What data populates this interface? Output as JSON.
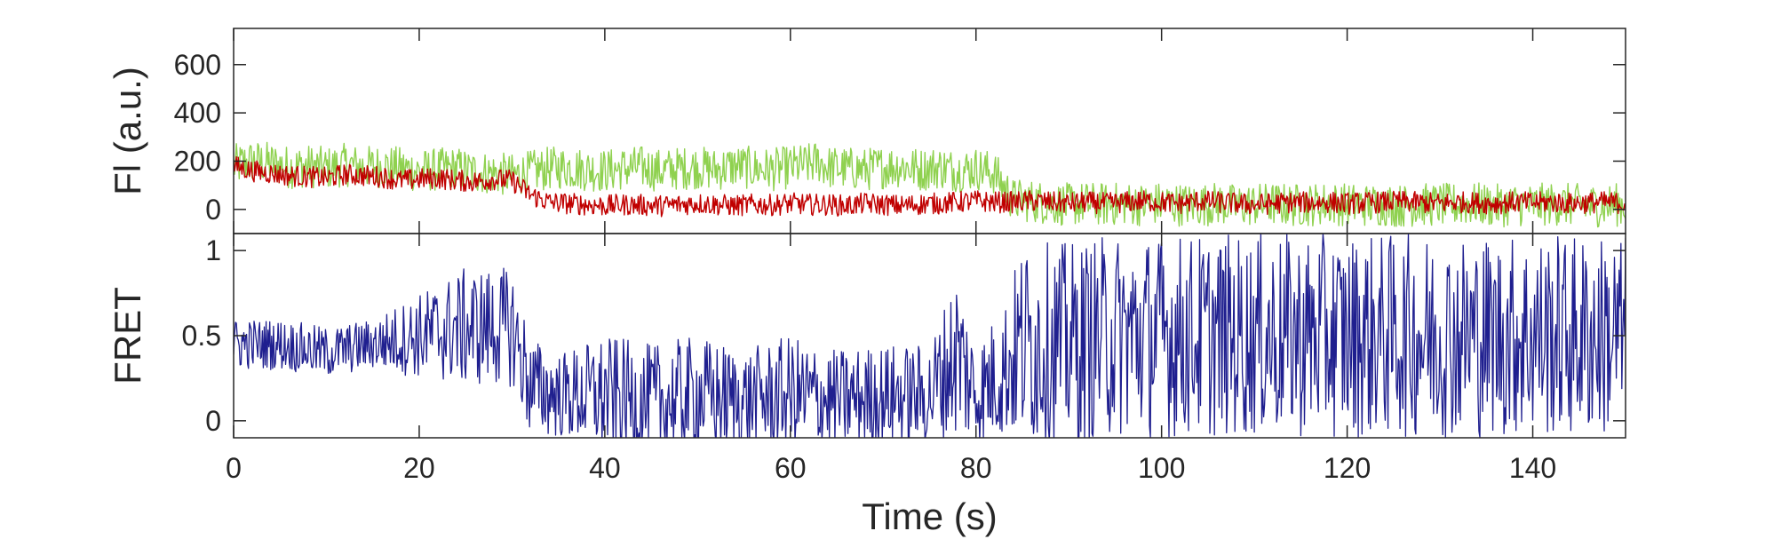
{
  "chart_data": [
    {
      "type": "line",
      "panel": "top",
      "ylabel": "Fl (a.u.)",
      "xlim": [
        0,
        150
      ],
      "ylim": [
        -100,
        750
      ],
      "yticks": [
        0,
        200,
        400,
        600
      ],
      "y_tick_labels": [
        "0",
        "200",
        "400",
        "600"
      ],
      "grid": false,
      "series": [
        {
          "color": "#8fd14f",
          "x": [
            0,
            2,
            4,
            6,
            8,
            10,
            12,
            14,
            16,
            18,
            20,
            22,
            24,
            26,
            28,
            30,
            32,
            34,
            36,
            38,
            40,
            42,
            44,
            46,
            48,
            50,
            52,
            54,
            56,
            58,
            60,
            62,
            63,
            64,
            66,
            68,
            70,
            72,
            74,
            76,
            78,
            80,
            82,
            84,
            86,
            88,
            90,
            92,
            94,
            96,
            98,
            100,
            102,
            104,
            106,
            108,
            110,
            112,
            114,
            116,
            118,
            120,
            122,
            124,
            126,
            128,
            130,
            132,
            134,
            136,
            138,
            140,
            142,
            144,
            146,
            148,
            150
          ],
          "y": [
            180,
            200,
            190,
            175,
            180,
            170,
            185,
            175,
            180,
            170,
            160,
            165,
            170,
            155,
            150,
            140,
            155,
            170,
            175,
            165,
            160,
            170,
            175,
            160,
            170,
            175,
            165,
            180,
            170,
            165,
            175,
            185,
            200,
            175,
            170,
            165,
            175,
            180,
            165,
            175,
            160,
            170,
            150,
            40,
            35,
            25,
            20,
            25,
            20,
            25,
            20,
            25,
            20,
            18,
            25,
            15,
            20,
            22,
            18,
            20,
            25,
            20,
            18,
            20,
            15,
            20,
            18,
            20,
            22,
            15,
            20,
            18,
            22,
            20,
            15,
            18,
            20
          ],
          "noise_amplitude": 90
        },
        {
          "color": "#c00000",
          "x": [
            0,
            2,
            4,
            6,
            8,
            10,
            12,
            14,
            16,
            18,
            20,
            22,
            24,
            26,
            28,
            30,
            32,
            34,
            36,
            38,
            40,
            42,
            44,
            46,
            48,
            50,
            52,
            54,
            56,
            58,
            60,
            62,
            64,
            66,
            68,
            70,
            72,
            74,
            76,
            78,
            80,
            82,
            84,
            86,
            88,
            90,
            92,
            94,
            96,
            98,
            100,
            102,
            104,
            106,
            108,
            110,
            112,
            114,
            116,
            118,
            120,
            122,
            124,
            126,
            128,
            130,
            132,
            134,
            136,
            138,
            140,
            142,
            144,
            146,
            148,
            150
          ],
          "y": [
            180,
            160,
            150,
            140,
            135,
            130,
            145,
            140,
            135,
            120,
            125,
            130,
            120,
            115,
            125,
            120,
            60,
            30,
            25,
            20,
            15,
            20,
            18,
            15,
            20,
            25,
            20,
            15,
            20,
            18,
            25,
            20,
            20,
            15,
            25,
            20,
            15,
            22,
            25,
            30,
            35,
            30,
            30,
            35,
            30,
            25,
            30,
            25,
            30,
            35,
            30,
            25,
            35,
            30,
            25,
            20,
            25,
            30,
            28,
            30,
            25,
            28,
            30,
            32,
            28,
            25,
            30,
            28,
            25,
            30,
            28,
            30,
            25,
            28,
            30,
            25
          ],
          "noise_amplitude": 45
        }
      ]
    },
    {
      "type": "line",
      "panel": "bottom",
      "ylabel": "FRET",
      "xlabel": "Time (s)",
      "xlim": [
        0,
        150
      ],
      "ylim": [
        -0.1,
        1.1
      ],
      "xticks": [
        0,
        20,
        40,
        60,
        80,
        100,
        120,
        140
      ],
      "x_tick_labels": [
        "0",
        "20",
        "40",
        "60",
        "80",
        "100",
        "120",
        "140"
      ],
      "yticks": [
        0,
        0.5,
        1
      ],
      "y_tick_labels": [
        "0",
        "0.5",
        "1"
      ],
      "grid": false,
      "series": [
        {
          "color": "#1f1f8f",
          "x": [
            0,
            5,
            10,
            15,
            20,
            25,
            30,
            32,
            35,
            40,
            45,
            50,
            55,
            60,
            65,
            70,
            75,
            78,
            80,
            83,
            85,
            90,
            95,
            100,
            105,
            110,
            115,
            120,
            125,
            130,
            135,
            140,
            145,
            150
          ],
          "y": [
            0.45,
            0.45,
            0.4,
            0.45,
            0.5,
            0.55,
            0.55,
            0.2,
            0.15,
            0.15,
            0.1,
            0.15,
            0.12,
            0.15,
            0.12,
            0.15,
            0.15,
            0.4,
            0.15,
            0.3,
            0.45,
            0.45,
            0.5,
            0.5,
            0.5,
            0.5,
            0.5,
            0.5,
            0.5,
            0.5,
            0.5,
            0.5,
            0.5,
            0.5
          ],
          "noise_amplitude": [
            0.15,
            0.15,
            0.15,
            0.15,
            0.25,
            0.35,
            0.35,
            0.3,
            0.25,
            0.35,
            0.35,
            0.35,
            0.3,
            0.35,
            0.3,
            0.3,
            0.3,
            0.5,
            0.3,
            0.4,
            0.6,
            0.6,
            0.6,
            0.6,
            0.6,
            0.6,
            0.6,
            0.6,
            0.6,
            0.6,
            0.6,
            0.6,
            0.6,
            0.6
          ]
        }
      ]
    }
  ]
}
